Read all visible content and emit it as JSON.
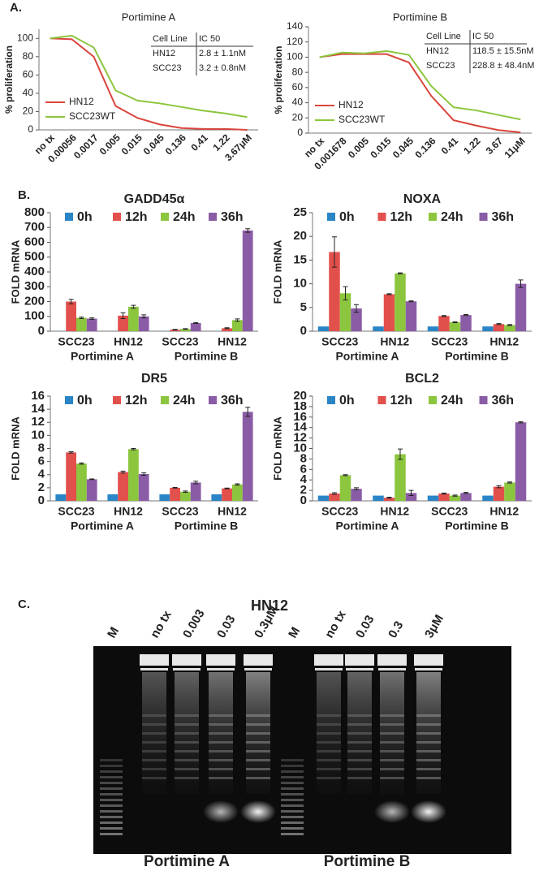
{
  "panel_labels": [
    "A.",
    "B.",
    "C."
  ],
  "chart_data": [
    {
      "type": "line",
      "title": "Portimine A",
      "y_label": "% proliferation",
      "categories": [
        "no tx",
        "0.00056",
        "0.0017",
        "0.005",
        "0.015",
        "0.045",
        "0.136",
        "0.41",
        "1.22",
        "3.67μM"
      ],
      "series": [
        {
          "name": "HN12",
          "color": "#d9453d",
          "values": [
            100,
            99,
            80,
            26,
            13,
            6,
            2,
            1,
            1,
            0
          ]
        },
        {
          "name": "SCC23WT",
          "color": "#8cc63e",
          "values": [
            100,
            103,
            90,
            43,
            32,
            29,
            25,
            21,
            18,
            14
          ]
        }
      ],
      "ylim": [
        0,
        110
      ],
      "yticks": [
        0,
        20,
        40,
        60,
        80,
        100
      ],
      "table": {
        "header": [
          "Cell Line",
          "IC 50"
        ],
        "rows": [
          [
            "HN12",
            "2.8 ± 1.1nM"
          ],
          [
            "SCC23",
            "3.2 ± 0.8nM"
          ]
        ]
      }
    },
    {
      "type": "line",
      "title": "Portimine B",
      "y_label": "% proliferation",
      "categories": [
        "no tx",
        "0.001678",
        "0.005",
        "0.015",
        "0.045",
        "0.136",
        "0.41",
        "1.22",
        "3.67",
        "11μM"
      ],
      "series": [
        {
          "name": "HN12",
          "color": "#d9453d",
          "values": [
            100,
            104,
            104,
            104,
            93,
            49,
            17,
            10,
            4,
            1
          ]
        },
        {
          "name": "SCC23WT",
          "color": "#8cc63e",
          "values": [
            100,
            106,
            105,
            108,
            103,
            62,
            34,
            30,
            24,
            18
          ]
        }
      ],
      "ylim": [
        0,
        140
      ],
      "yticks": [
        0,
        20,
        40,
        60,
        80,
        100,
        120,
        140
      ],
      "table": {
        "header": [
          "Cell Line",
          "IC 50"
        ],
        "rows": [
          [
            "HN12",
            "118.5 ± 15.5nM"
          ],
          [
            "SCC23",
            "228.8 ± 48.4nM"
          ]
        ]
      }
    },
    {
      "type": "bar",
      "title": "GADD45α",
      "y_label": "FOLD mRNA",
      "categories": [
        "SCC23",
        "HN12",
        "SCC23",
        "HN12"
      ],
      "group_labels": [
        "Portimine A",
        "Portimine B"
      ],
      "series": [
        {
          "name": "0h",
          "color": "#2a85c7",
          "values": [
            1,
            1,
            1,
            1
          ]
        },
        {
          "name": "12h",
          "color": "#e2504c",
          "values": [
            200,
            105,
            10,
            20
          ],
          "errors": [
            15,
            20,
            2,
            3
          ]
        },
        {
          "name": "24h",
          "color": "#8cc63e",
          "values": [
            90,
            165,
            15,
            75
          ],
          "errors": [
            5,
            10,
            2,
            8
          ]
        },
        {
          "name": "36h",
          "color": "#8b5ca6",
          "values": [
            85,
            100,
            55,
            680
          ],
          "errors": [
            5,
            10,
            3,
            12
          ]
        }
      ],
      "ylim": [
        0,
        800
      ],
      "yticks": [
        0,
        100,
        200,
        300,
        400,
        500,
        600,
        700,
        800
      ]
    },
    {
      "type": "bar",
      "title": "NOXA",
      "y_label": "FOLD mRNA",
      "categories": [
        "SCC23",
        "HN12",
        "SCC23",
        "HN12"
      ],
      "group_labels": [
        "Portimine A",
        "Portimine B"
      ],
      "series": [
        {
          "name": "0h",
          "color": "#2a85c7",
          "values": [
            1,
            1,
            1,
            1
          ]
        },
        {
          "name": "12h",
          "color": "#e2504c",
          "values": [
            16.7,
            7.8,
            3.2,
            1.5
          ],
          "errors": [
            3.2,
            0.1,
            0.1,
            0.1
          ]
        },
        {
          "name": "24h",
          "color": "#8cc63e",
          "values": [
            8,
            12.2,
            1.9,
            1.3
          ],
          "errors": [
            1.4,
            0.1,
            0.1,
            0.1
          ]
        },
        {
          "name": "36h",
          "color": "#8b5ca6",
          "values": [
            4.8,
            6.3,
            3.4,
            10
          ],
          "errors": [
            0.8,
            0.1,
            0.1,
            0.8
          ]
        }
      ],
      "ylim": [
        0,
        25
      ],
      "yticks": [
        0,
        5,
        10,
        15,
        20,
        25
      ]
    },
    {
      "type": "bar",
      "title": "DR5",
      "y_label": "FOLD mRNA",
      "categories": [
        "SCC23",
        "HN12",
        "SCC23",
        "HN12"
      ],
      "group_labels": [
        "Portimine A",
        "Portimine B"
      ],
      "series": [
        {
          "name": "0h",
          "color": "#2a85c7",
          "values": [
            1,
            1,
            1,
            1
          ]
        },
        {
          "name": "12h",
          "color": "#e2504c",
          "values": [
            7.4,
            4.4,
            2,
            1.9
          ],
          "errors": [
            0.1,
            0.15,
            0.05,
            0.05
          ]
        },
        {
          "name": "24h",
          "color": "#8cc63e",
          "values": [
            5.7,
            7.9,
            1.4,
            2.5
          ],
          "errors": [
            0.1,
            0.1,
            0.1,
            0.1
          ]
        },
        {
          "name": "36h",
          "color": "#8b5ca6",
          "values": [
            3.3,
            4.1,
            2.8,
            13.6
          ],
          "errors": [
            0.05,
            0.2,
            0.2,
            0.7
          ]
        }
      ],
      "ylim": [
        0,
        16
      ],
      "yticks": [
        0,
        2,
        4,
        6,
        8,
        10,
        12,
        14,
        16
      ]
    },
    {
      "type": "bar",
      "title": "BCL2",
      "y_label": "FOLD mRNA",
      "categories": [
        "SCC23",
        "HN12",
        "SCC23",
        "HN12"
      ],
      "group_labels": [
        "Portimine A",
        "Portimine B"
      ],
      "series": [
        {
          "name": "0h",
          "color": "#2a85c7",
          "values": [
            1,
            1,
            1,
            1
          ]
        },
        {
          "name": "12h",
          "color": "#e2504c",
          "values": [
            1.4,
            0.6,
            1.4,
            2.7
          ],
          "errors": [
            0.15,
            0.1,
            0.1,
            0.2
          ]
        },
        {
          "name": "24h",
          "color": "#8cc63e",
          "values": [
            4.9,
            8.9,
            1,
            3.5
          ],
          "errors": [
            0.1,
            1,
            0.1,
            0.1
          ]
        },
        {
          "name": "36h",
          "color": "#8b5ca6",
          "values": [
            2.3,
            1.5,
            1.5,
            15
          ],
          "errors": [
            0.2,
            0.5,
            0.1,
            0.1
          ]
        }
      ],
      "ylim": [
        0,
        20
      ],
      "yticks": [
        0,
        2,
        4,
        6,
        8,
        10,
        12,
        14,
        16,
        18,
        20
      ]
    }
  ],
  "gel": {
    "title": "HN12",
    "lanes": [
      "M",
      "no tx",
      "0.003",
      "0.03",
      "0.3μM",
      "M",
      "no tx",
      "0.03",
      "0.3",
      "3μM"
    ],
    "captions": [
      "Portimine A",
      "Portimine B"
    ]
  }
}
